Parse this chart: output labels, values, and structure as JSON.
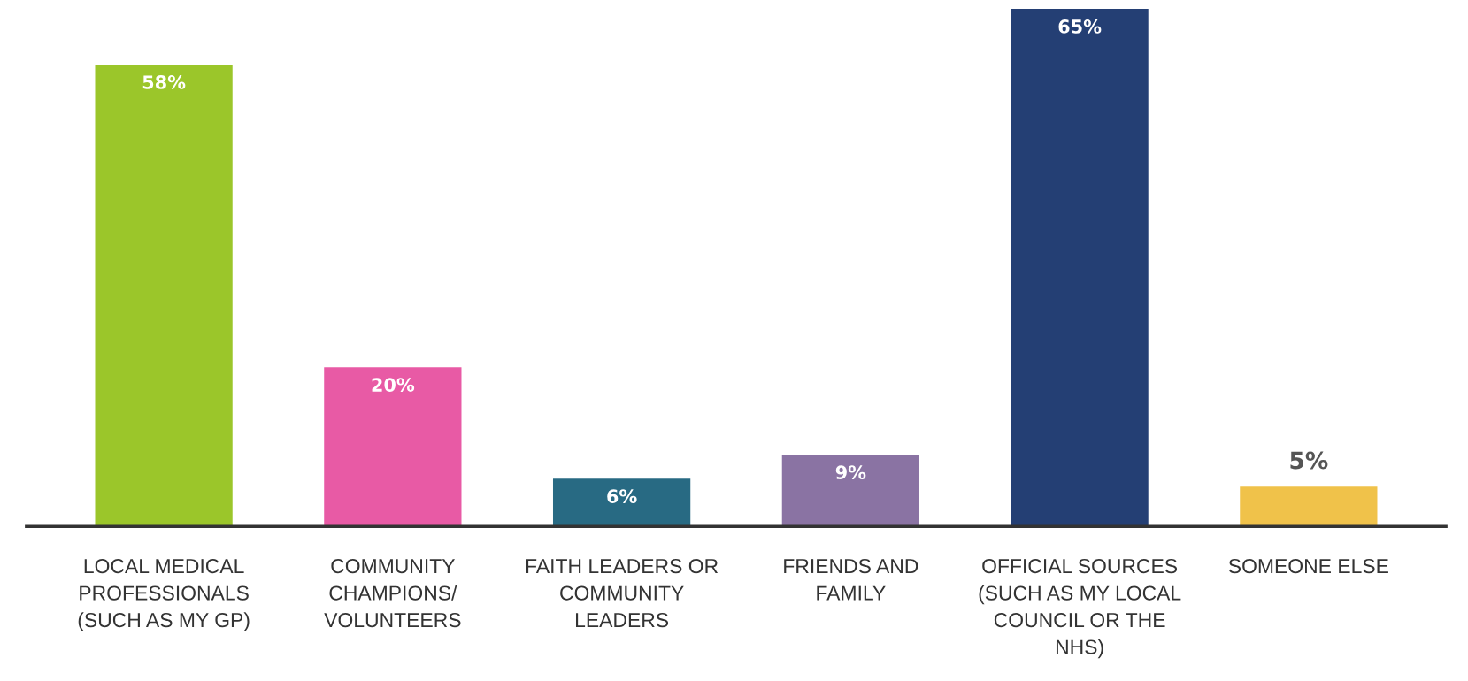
{
  "chart_data": {
    "type": "bar",
    "categories": [
      "LOCAL MEDICAL\nPROFESSIONALS\n(SUCH AS MY GP)",
      "COMMUNITY\nCHAMPIONS/\nVOLUNTEERS",
      "FAITH LEADERS OR\nCOMMUNITY\nLEADERS",
      "FRIENDS AND\nFAMILY",
      "OFFICIAL SOURCES\n(SUCH AS MY LOCAL\nCOUNCIL OR THE\nNHS)",
      "SOMEONE ELSE"
    ],
    "values": [
      58,
      20,
      6,
      9,
      65,
      5
    ],
    "value_labels": [
      "58%",
      "20%",
      "6%",
      "9%",
      "65%",
      "5%"
    ],
    "colors": [
      "#9bc62a",
      "#e85aa5",
      "#286a83",
      "#8a73a3",
      "#243f74",
      "#f0c24a"
    ],
    "grid": false,
    "legend": false
  }
}
